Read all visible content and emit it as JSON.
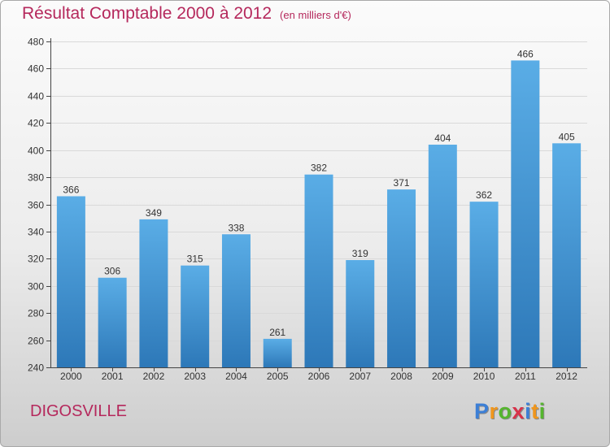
{
  "title": "Résultat Comptable 2000 à 2012",
  "subtitle": "(en milliers d'€)",
  "commune": "DIGOSVILLE",
  "logo": {
    "letters": [
      "P",
      "r",
      "o",
      "x",
      "i",
      "t",
      "i"
    ],
    "colors": [
      "#3c7fd6",
      "#f0961c",
      "#55b52e",
      "#d8324a",
      "#3c7fd6",
      "#f0961c",
      "#55b52e"
    ]
  },
  "colors": {
    "bar_top": "#5aade6",
    "bar_bottom": "#2d78b8",
    "title": "#b5285c",
    "grid": "#d9d9d9"
  },
  "chart_data": {
    "type": "bar",
    "categories": [
      "2000",
      "2001",
      "2002",
      "2003",
      "2004",
      "2005",
      "2006",
      "2007",
      "2008",
      "2009",
      "2010",
      "2011",
      "2012"
    ],
    "values": [
      366,
      306,
      349,
      315,
      338,
      261,
      382,
      319,
      371,
      404,
      362,
      466,
      405
    ],
    "ylim": [
      240,
      480
    ],
    "yticks": [
      240,
      260,
      280,
      300,
      320,
      340,
      360,
      380,
      400,
      420,
      440,
      460,
      480
    ],
    "grid": true,
    "data_labels": true
  }
}
